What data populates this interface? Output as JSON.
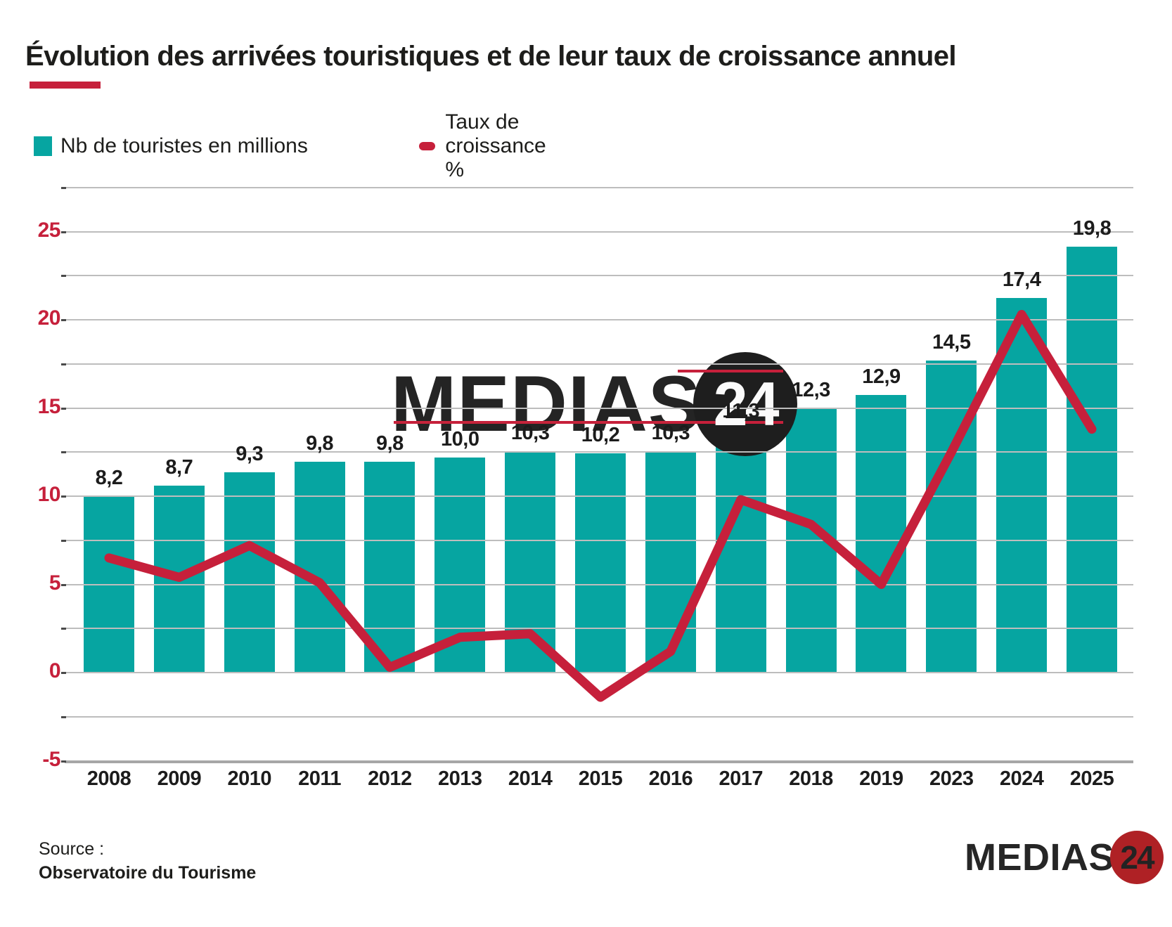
{
  "title": "Évolution des arrivées touristiques et de leur taux de croissance annuel",
  "legend": {
    "bars_label": "Nb de touristes en millions",
    "line_label": "Taux de croissance %"
  },
  "colors": {
    "teal": "#06a5a1",
    "red": "#c6203b",
    "dark": "#1d1d1b",
    "gridline": "#bdbdbd",
    "logo_circle_red": "#af2125"
  },
  "chart_data": {
    "type": "combo",
    "categories": [
      "2008",
      "2009",
      "2010",
      "2011",
      "2012",
      "2013",
      "2014",
      "2015",
      "2016",
      "2017",
      "2018",
      "2019",
      "2023",
      "2024",
      "2025"
    ],
    "series": [
      {
        "name": "Nb de touristes en millions",
        "type": "bar",
        "color": "#06a5a1",
        "values": [
          8.2,
          8.7,
          9.3,
          9.8,
          9.8,
          10.0,
          10.3,
          10.2,
          10.3,
          11.3,
          12.3,
          12.9,
          14.5,
          17.4,
          19.8
        ]
      },
      {
        "name": "Taux de croissance %",
        "type": "line",
        "color": "#c6203b",
        "values": [
          6.5,
          5.4,
          7.2,
          5.1,
          0.3,
          2.0,
          2.2,
          -1.4,
          1.2,
          9.8,
          8.4,
          5.0,
          12.5,
          20.3,
          13.8
        ]
      }
    ],
    "y_axis": {
      "min": -5,
      "max": 27.5,
      "gridline_step": 2.5,
      "tick_labels": [
        25,
        20,
        15,
        10,
        5,
        0,
        -5
      ],
      "grid": true
    },
    "value_label_decimal_separator": ",",
    "bar_secondary_scale_factor": 1.2195,
    "legend_position": "top-left"
  },
  "watermark": {
    "text": "MEDIAS",
    "number": "24"
  },
  "source": {
    "label": "Source :",
    "name": "Observatoire du Tourisme"
  },
  "logo": {
    "text": "MEDIAS",
    "number": "24"
  }
}
